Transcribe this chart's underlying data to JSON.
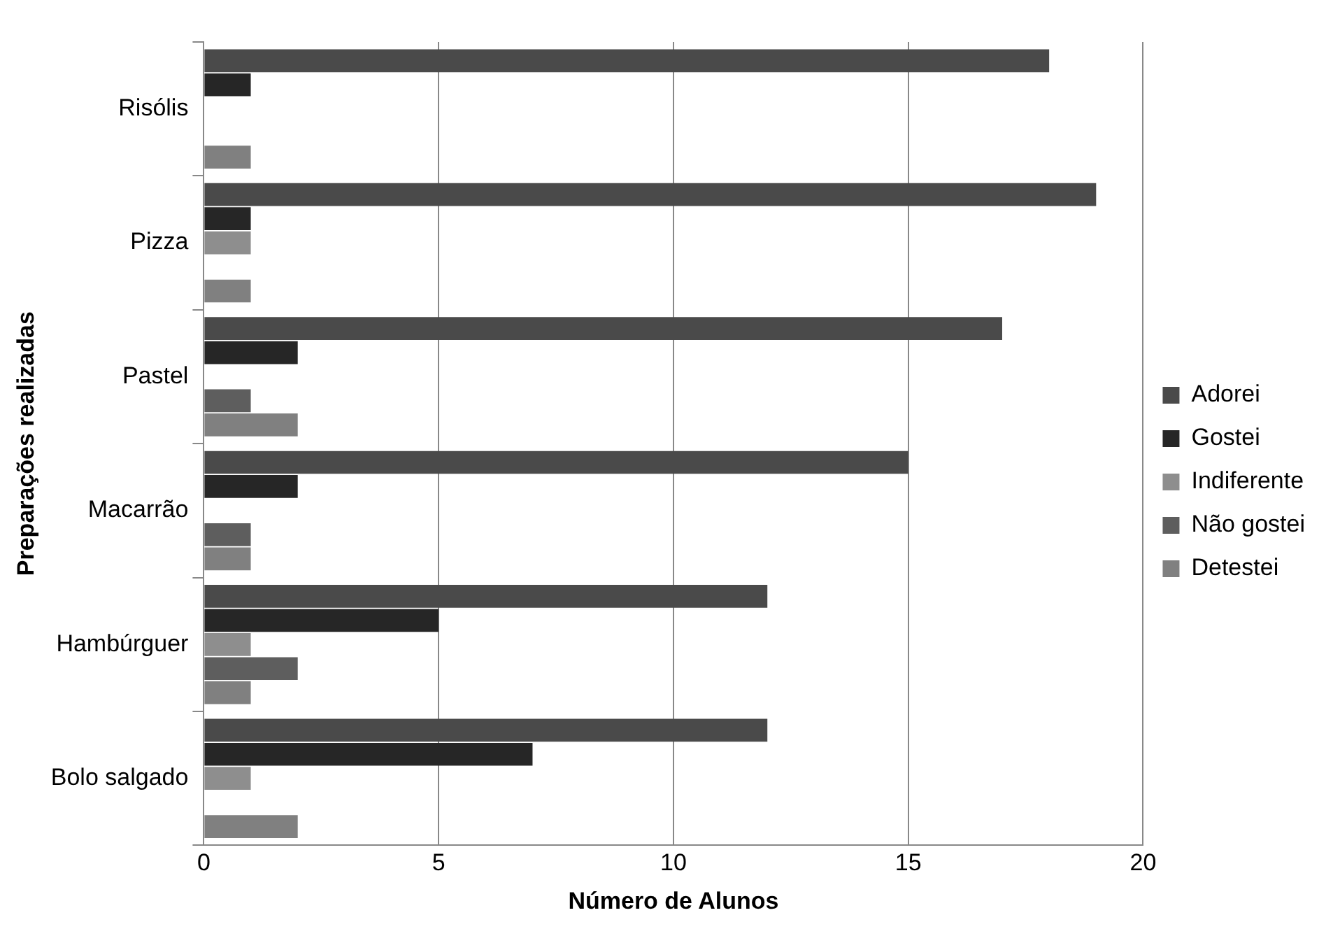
{
  "chart_data": {
    "type": "bar",
    "orientation": "horizontal",
    "xlabel": "Número de Alunos",
    "ylabel": "Preparações realizadas",
    "categories": [
      "Risólis",
      "Pizza",
      "Pastel",
      "Macarrão",
      "Hambúrguer",
      "Bolo salgado"
    ],
    "series": [
      {
        "name": "Adorei",
        "color": "#4a4a4a",
        "values": [
          18,
          19,
          17,
          15,
          12,
          12
        ]
      },
      {
        "name": "Gostei",
        "color": "#262626",
        "values": [
          1,
          1,
          2,
          2,
          5,
          7
        ]
      },
      {
        "name": "Indiferente",
        "color": "#8e8e8e",
        "values": [
          0,
          1,
          0,
          0,
          1,
          1
        ]
      },
      {
        "name": "Não gostei",
        "color": "#5e5e5e",
        "values": [
          0,
          0,
          1,
          1,
          2,
          0
        ]
      },
      {
        "name": "Detestei",
        "color": "#808080",
        "values": [
          1,
          1,
          2,
          1,
          1,
          2
        ]
      }
    ],
    "xlim": [
      0,
      20
    ],
    "xticks": [
      0,
      5,
      10,
      15,
      20
    ],
    "grid": "x",
    "legend": "right"
  }
}
